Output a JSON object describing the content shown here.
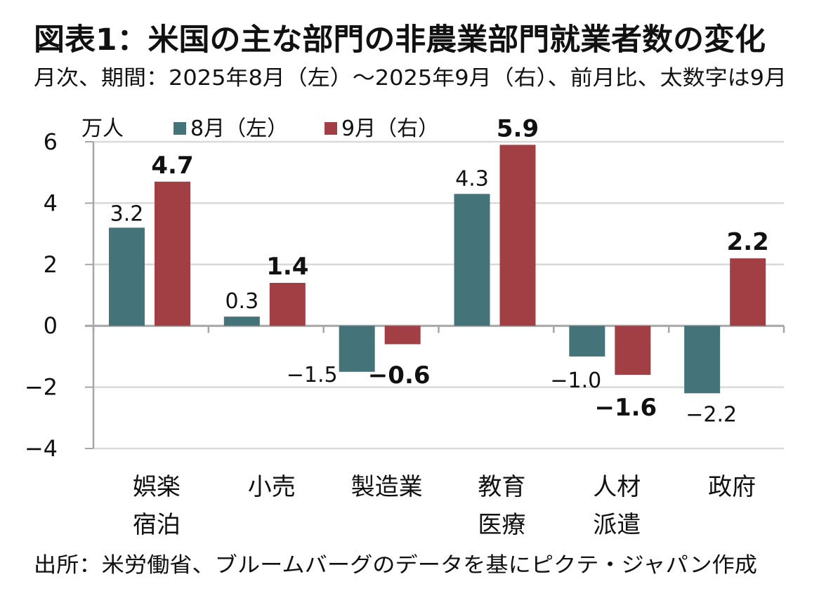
{
  "header": {
    "title": "図表1：米国の主な部門の非農業部門就業者数の変化",
    "subtitle": "月次、期間：2025年8月（左）～2025年9月（右）、前月比、太数字は9月"
  },
  "footer": {
    "source": "出所：米労働省、ブルームバーグのデータを基にピクテ・ジャパン作成"
  },
  "colors": {
    "aug": "#44737A",
    "sep": "#A13F45",
    "grid": "#D9D9D9",
    "axis": "#A6A6A6"
  },
  "chart_data": {
    "type": "bar",
    "title": "図表1：米国の主な部門の非農業部門就業者数の変化",
    "subtitle": "月次、期間：2025年8月（左）～2025年9月（右）、前月比、太数字は9月",
    "unit_label": "万人",
    "xlabel": "",
    "ylabel": "万人",
    "ylim": [
      -4,
      6
    ],
    "yticks": [
      6,
      4,
      2,
      0,
      -2,
      -4
    ],
    "ytick_labels": [
      "6",
      "4",
      "2",
      "0",
      "−2",
      "−4"
    ],
    "grid": true,
    "legend_position": "top-left",
    "categories": [
      [
        "娯楽",
        "宿泊"
      ],
      [
        "小売"
      ],
      [
        "製造業"
      ],
      [
        "教育",
        "医療"
      ],
      [
        "人材",
        "派遣"
      ],
      [
        "政府"
      ]
    ],
    "series": [
      {
        "name": "8月（左）",
        "values": [
          3.2,
          0.3,
          -1.5,
          4.3,
          -1.0,
          -2.2
        ],
        "labels": [
          "3.2",
          "0.3",
          "−1.5",
          "4.3",
          "−1.0",
          "−2.2"
        ],
        "bold": false
      },
      {
        "name": "9月（右）",
        "values": [
          4.7,
          1.4,
          -0.6,
          5.9,
          -1.6,
          2.2
        ],
        "labels": [
          "4.7",
          "1.4",
          "−0.6",
          "5.9",
          "−1.6",
          "2.2"
        ],
        "bold": true
      }
    ]
  }
}
